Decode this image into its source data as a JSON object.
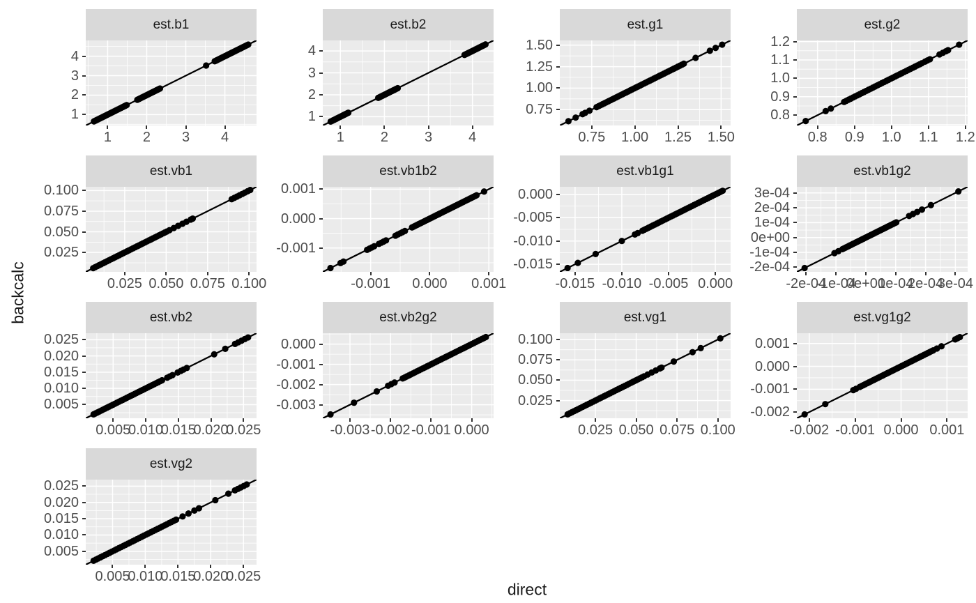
{
  "colors": {
    "panel_bg": "#EBEBEB",
    "strip_bg": "#D9D9D9",
    "grid": "#FFFFFF",
    "point": "#000000",
    "line": "#000000",
    "tick_text": "#4D4D4D",
    "strip_text": "#1A1A1A",
    "tick_mark": "#333333",
    "background": "#FFFFFF"
  },
  "chart_data": {
    "type": "scatter",
    "xlabel": "direct",
    "ylabel": "backcalc",
    "title": "",
    "legend": "none",
    "grid": "white major and minor gridlines on grey panels",
    "facet_columns": 4,
    "identity_line": true,
    "note": "13 facets comparing direct vs backcalc estimates; points lie on the y=x identity line; x and y share identical ranges and tick labels per facet; point values given as x (y equals x)",
    "facets": [
      {
        "title": "est.b1",
        "lim": [
          0.44,
          4.81
        ],
        "ticks": [
          1,
          2,
          3,
          4
        ],
        "tick_labels": [
          "1",
          "2",
          "3",
          "4"
        ],
        "points": [
          {
            "from": 0.65,
            "to": 1.48,
            "step": 0.027
          },
          {
            "from": 1.76,
            "to": 2.34,
            "step": 0.029
          },
          3.52,
          {
            "from": 3.74,
            "to": 4.6,
            "step": 0.033
          }
        ]
      },
      {
        "title": "est.b2",
        "lim": [
          0.6,
          4.48
        ],
        "ticks": [
          1,
          2,
          3,
          4
        ],
        "tick_labels": [
          "1",
          "2",
          "3",
          "4"
        ],
        "points": [
          0.78,
          {
            "from": 0.82,
            "to": 1.18,
            "step": 0.024
          },
          {
            "from": 1.86,
            "to": 2.3,
            "step": 0.026
          },
          {
            "from": 3.82,
            "to": 4.3,
            "step": 0.028
          }
        ]
      },
      {
        "title": "est.g1",
        "lim": [
          0.565,
          1.555
        ],
        "ticks": [
          0.75,
          1.0,
          1.25,
          1.5
        ],
        "tick_labels": [
          "0.75",
          "1.00",
          "1.25",
          "1.50"
        ],
        "points": [
          0.615,
          0.657,
          0.697,
          0.712,
          0.737,
          {
            "from": 0.778,
            "to": 1.288,
            "step": 0.0115
          },
          1.352,
          1.435,
          1.468,
          1.506
        ]
      },
      {
        "title": "est.g2",
        "lim": [
          0.744,
          1.206
        ],
        "ticks": [
          0.8,
          0.9,
          1.0,
          1.1,
          1.2
        ],
        "tick_labels": [
          "0.8",
          "0.9",
          "1.0",
          "1.1",
          "1.2"
        ],
        "points": [
          0.768,
          0.822,
          0.836,
          {
            "from": 0.872,
            "to": 1.082,
            "step": 0.006
          },
          1.091,
          1.097,
          1.104,
          1.13,
          1.139,
          1.147,
          1.153,
          1.183
        ]
      },
      {
        "title": "est.vb1",
        "lim": [
          0.0015,
          0.1045
        ],
        "ticks": [
          0.025,
          0.05,
          0.075,
          0.1
        ],
        "tick_labels": [
          "0.025",
          "0.050",
          "0.075",
          "0.100"
        ],
        "points": [
          {
            "from": 0.006,
            "to": 0.0502,
            "step": 0.0012
          },
          0.052,
          0.0546,
          0.0572,
          0.0598,
          0.0622,
          0.0648,
          0.066,
          {
            "from": 0.0895,
            "to": 0.1005,
            "step": 0.0016
          }
        ]
      },
      {
        "title": "est.vb1b2",
        "lim": [
          -0.00181,
          0.00108
        ],
        "ticks": [
          -0.001,
          0,
          0.001
        ],
        "tick_labels": [
          "-0.001",
          "0.000",
          "0.001"
        ],
        "points": [
          -0.00168,
          -0.00151,
          -0.00146,
          {
            "from": -0.00106,
            "to": -0.00094,
            "step": 4e-05
          },
          {
            "from": -0.00086,
            "to": -0.00074,
            "step": 4e-05
          },
          {
            "from": -0.00058,
            "to": -0.00042,
            "step": 4e-05
          },
          {
            "from": -0.0003,
            "to": 0.0008,
            "step": 2.8e-05
          },
          0.00092
        ]
      },
      {
        "title": "est.vb1g1",
        "lim": [
          -0.01663,
          0.00163
        ],
        "ticks": [
          -0.015,
          -0.01,
          -0.005,
          0
        ],
        "tick_labels": [
          "-0.015",
          "-0.010",
          "-0.005",
          "0.000"
        ],
        "points": [
          -0.0158,
          -0.0147,
          -0.0128,
          -0.01,
          -0.0086,
          -0.0083,
          {
            "from": -0.0078,
            "to": 0.0008,
            "step": 0.00022
          }
        ]
      },
      {
        "title": "est.vb1g2",
        "lim": [
          -0.000231,
          0.000341
        ],
        "ticks": [
          -0.0002,
          -0.0001,
          0,
          0.0001,
          0.0002,
          0.0003
        ],
        "tick_labels": [
          "-2e-04",
          "-1e-04",
          "0e+00",
          "1e-04",
          "2e-04",
          "3e-04"
        ],
        "points": [
          -0.000205,
          -0.000105,
          -9.2e-05,
          {
            "from": -7.8e-05,
            "to": 0.000102,
            "step": 5e-06
          },
          0.000145,
          0.000158,
          0.000172,
          0.000188,
          0.000218,
          0.00031
        ]
      },
      {
        "title": "est.vb2",
        "lim": [
          0.0008,
          0.027
        ],
        "ticks": [
          0.005,
          0.01,
          0.015,
          0.02,
          0.025
        ],
        "tick_labels": [
          "0.005",
          "0.010",
          "0.015",
          "0.020",
          "0.025"
        ],
        "points": [
          {
            "from": 0.002,
            "to": 0.0126,
            "step": 0.0003
          },
          0.0133,
          0.0137,
          0.0141,
          0.0149,
          0.0154,
          0.0158,
          0.0163,
          0.0205,
          0.0222,
          {
            "from": 0.0237,
            "to": 0.0257,
            "step": 0.0005
          }
        ]
      },
      {
        "title": "est.vb2g2",
        "lim": [
          -0.00367,
          0.00054
        ],
        "ticks": [
          -0.003,
          -0.002,
          -0.001,
          0
        ],
        "tick_labels": [
          "-0.003",
          "-0.002",
          "-0.001",
          "0.000"
        ],
        "points": [
          -0.00348,
          -0.0029,
          -0.00234,
          -0.00206,
          -0.00198,
          -0.0019,
          {
            "from": -0.0017,
            "to": 0.00035,
            "step": 5e-05
          }
        ]
      },
      {
        "title": "est.vg1",
        "lim": [
          0.0032,
          0.1078
        ],
        "ticks": [
          0.025,
          0.05,
          0.075,
          0.1
        ],
        "tick_labels": [
          "0.025",
          "0.050",
          "0.075",
          "0.100"
        ],
        "points": [
          {
            "from": 0.008,
            "to": 0.0545,
            "step": 0.0013
          },
          0.057,
          0.0595,
          0.062,
          0.0645,
          0.0655,
          0.073,
          0.0845,
          0.0895,
          0.1015
        ]
      },
      {
        "title": "est.vg1g2",
        "lim": [
          -0.00227,
          0.00145
        ],
        "ticks": [
          -0.002,
          -0.001,
          0,
          0.001
        ],
        "tick_labels": [
          "-0.002",
          "-0.001",
          "0.000",
          "0.001"
        ],
        "points": [
          -0.0021,
          -0.00165,
          -0.00104,
          -0.00098,
          {
            "from": -0.0009,
            "to": 0.00068,
            "step": 4e-05
          },
          0.00078,
          0.00088,
          0.00118,
          0.00123,
          0.00128
        ]
      },
      {
        "title": "est.vg2",
        "lim": [
          0.0009,
          0.027
        ],
        "ticks": [
          0.005,
          0.01,
          0.015,
          0.02,
          0.025
        ],
        "tick_labels": [
          "0.005",
          "0.010",
          "0.015",
          "0.020",
          "0.025"
        ],
        "points": [
          {
            "from": 0.0021,
            "to": 0.0148,
            "step": 0.00035
          },
          0.0157,
          0.0166,
          0.0175,
          0.0182,
          0.0207,
          0.0227,
          {
            "from": 0.0237,
            "to": 0.0255,
            "step": 0.00045
          }
        ]
      }
    ]
  }
}
